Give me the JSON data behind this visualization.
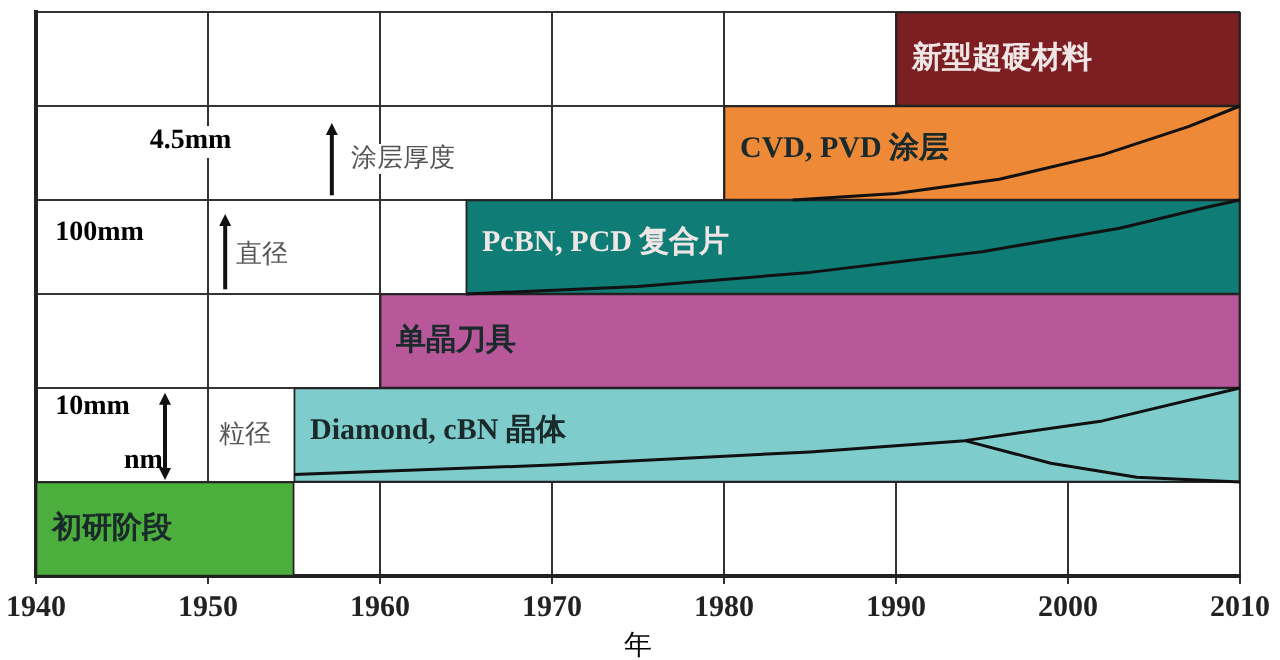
{
  "chart_data": {
    "type": "bar",
    "orientation": "horizontal",
    "xlabel": "年",
    "categories": [
      null,
      null,
      null,
      null,
      null,
      null
    ],
    "base": [
      1990,
      1980,
      1965,
      1960,
      1955,
      1940
    ],
    "values": [
      20,
      30,
      45,
      50,
      55,
      15
    ],
    "colors": [
      "#7d1f22",
      "#ee8a37",
      "#0f7d76",
      "#b8579a",
      "#7fcccc",
      "#4cae3c"
    ],
    "value_labels": [
      "新型超硬材料",
      "CVD, PVD 涂层",
      "PcBN, PCD 复合片",
      "单晶刀具",
      "Diamond, cBN 晶体",
      "初研阶段"
    ],
    "xlim": [
      1940,
      2010
    ],
    "xticks": [
      1940,
      1950,
      1960,
      1970,
      1980,
      1990,
      2000,
      2010
    ],
    "grid": true,
    "tick_labels": "x",
    "annotations": [
      "4.5mm",
      "涂层厚度",
      "100mm",
      "直径",
      "10mm",
      "nm",
      "粒径"
    ]
  }
}
